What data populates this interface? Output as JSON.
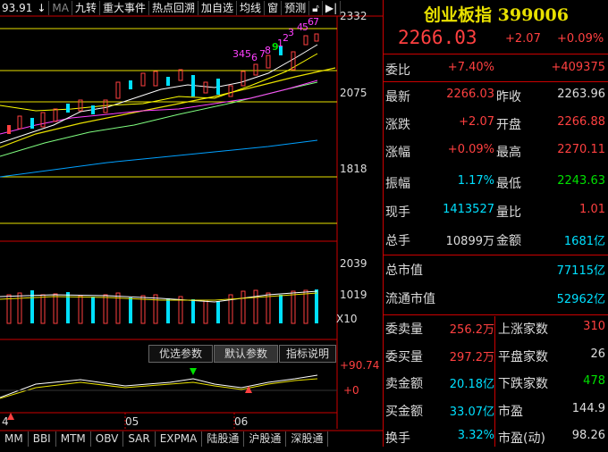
{
  "toolbar": {
    "price": "93.91",
    "items": [
      "九转",
      "重大事件",
      "热点回溯",
      "加自选",
      "均线",
      "窗",
      "预测"
    ],
    "ma_label": "MA"
  },
  "price_axis": {
    "high": "2332",
    "mid": "2075",
    "low": "1818"
  },
  "volume_axis": {
    "high": "2039",
    "mid": "1019",
    "unit": "X10"
  },
  "indicator_axis": {
    "high": "+90.74",
    "zero": "+0"
  },
  "indicator_buttons": [
    "优选参数",
    "默认参数",
    "指标说明"
  ],
  "date_labels": [
    "4",
    "05",
    "06"
  ],
  "bottom_tabs": [
    "MM",
    "BBI",
    "MTM",
    "OBV",
    "SAR",
    "EXPMA",
    "陆股通",
    "沪股通",
    "深股通"
  ],
  "nine_turn_labels": [
    "3",
    "4",
    "5",
    "6",
    "7",
    "8",
    "9",
    "1",
    "2",
    "3",
    "4",
    "5",
    "6",
    "7"
  ],
  "panel": {
    "title": "创业板指 399006",
    "price": "2266.03",
    "change": "+2.07",
    "change_pct": "+0.09%",
    "weibi_label": "委比",
    "weibi_value": "+7.40%",
    "weicha_value": "+409375",
    "rows": [
      {
        "l1": "最新",
        "v1": "2266.03",
        "c1": "red",
        "l2": "昨收",
        "v2": "2263.96",
        "c2": "white"
      },
      {
        "l1": "涨跌",
        "v1": "+2.07",
        "c1": "red",
        "l2": "开盘",
        "v2": "2266.88",
        "c2": "red"
      },
      {
        "l1": "涨幅",
        "v1": "+0.09%",
        "c1": "red",
        "l2": "最高",
        "v2": "2270.11",
        "c2": "red"
      },
      {
        "l1": "振幅",
        "v1": "1.17%",
        "c1": "cyan",
        "l2": "最低",
        "v2": "2243.63",
        "c2": "green"
      },
      {
        "l1": "现手",
        "v1": "1413527",
        "c1": "cyan",
        "l2": "量比",
        "v2": "1.01",
        "c2": "red"
      },
      {
        "l1": "总手",
        "v1": "10899万",
        "c1": "white",
        "l2": "金额",
        "v2": "1681亿",
        "c2": "cyan"
      }
    ],
    "mkt_cap_label": "总市值",
    "mkt_cap_value": "77115亿",
    "float_cap_label": "流通市值",
    "float_cap_value": "52962亿",
    "stats": [
      {
        "l1": "委卖量",
        "v1": "256.2万",
        "c1": "red",
        "l2": "上涨家数",
        "v2": "310",
        "c2": "red"
      },
      {
        "l1": "委买量",
        "v1": "297.2万",
        "c1": "red",
        "l2": "平盘家数",
        "v2": "26",
        "c2": "white"
      },
      {
        "l1": "卖金额",
        "v1": "20.18亿",
        "c1": "cyan",
        "l2": "下跌家数",
        "v2": "478",
        "c2": "green"
      },
      {
        "l1": "买金额",
        "v1": "33.07亿",
        "c1": "cyan",
        "l2": "市盈",
        "v2": "144.9",
        "c2": "white"
      },
      {
        "l1": "换手",
        "v1": "3.32%",
        "c1": "cyan",
        "l2": "市盈(动)",
        "v2": "98.26",
        "c2": "white"
      }
    ]
  }
}
